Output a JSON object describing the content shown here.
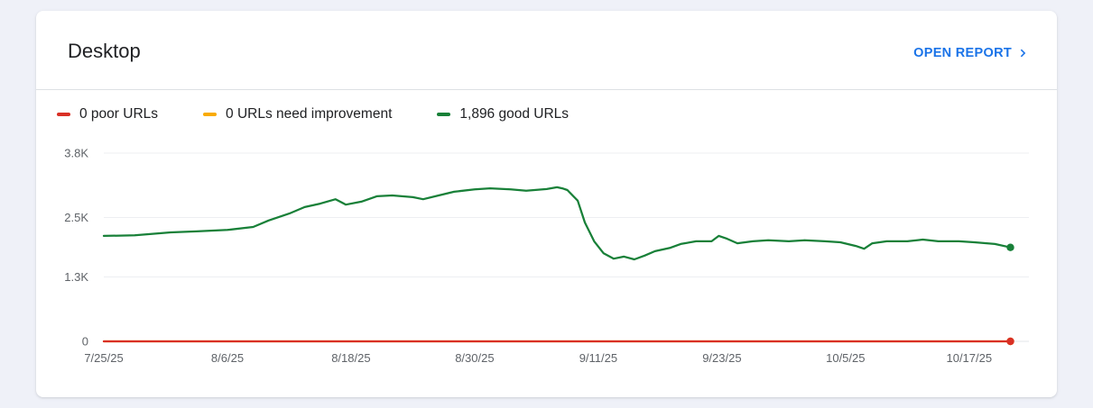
{
  "header": {
    "title": "Desktop",
    "open_report_label": "OPEN REPORT"
  },
  "legend": {
    "items": [
      {
        "label": "0 poor URLs",
        "color": "#d93025"
      },
      {
        "label": "0 URLs need improvement",
        "color": "#f9ab00"
      },
      {
        "label": "1,896 good URLs",
        "color": "#188038"
      }
    ]
  },
  "chart_data": {
    "type": "line",
    "title": "Desktop",
    "xlabel": "",
    "ylabel": "",
    "grid": true,
    "legend_position": "top-left",
    "xlim": [
      0,
      89.8
    ],
    "ylim": [
      0,
      3800
    ],
    "x_unit": "days since 7/25/25",
    "x_ticks": [
      {
        "day": 0,
        "label": "7/25/25"
      },
      {
        "day": 12,
        "label": "8/6/25"
      },
      {
        "day": 24,
        "label": "8/18/25"
      },
      {
        "day": 36,
        "label": "8/30/25"
      },
      {
        "day": 48,
        "label": "9/11/25"
      },
      {
        "day": 60,
        "label": "9/23/25"
      },
      {
        "day": 72,
        "label": "10/5/25"
      },
      {
        "day": 84,
        "label": "10/17/25"
      }
    ],
    "y_ticks": [
      {
        "value": 0,
        "label": "0"
      },
      {
        "value": 1300,
        "label": "1.3K"
      },
      {
        "value": 2500,
        "label": "2.5K"
      },
      {
        "value": 3800,
        "label": "3.8K"
      }
    ],
    "series": [
      {
        "name": "good URLs",
        "color": "#188038",
        "points": [
          [
            0,
            2130
          ],
          [
            3,
            2140
          ],
          [
            6.5,
            2200
          ],
          [
            9,
            2220
          ],
          [
            12,
            2250
          ],
          [
            14.5,
            2310
          ],
          [
            16,
            2440
          ],
          [
            18,
            2580
          ],
          [
            19.5,
            2710
          ],
          [
            21,
            2780
          ],
          [
            22.5,
            2870
          ],
          [
            23.5,
            2760
          ],
          [
            25,
            2820
          ],
          [
            26.5,
            2930
          ],
          [
            28,
            2945
          ],
          [
            30,
            2910
          ],
          [
            31,
            2870
          ],
          [
            32.5,
            2945
          ],
          [
            34,
            3020
          ],
          [
            36,
            3070
          ],
          [
            37.5,
            3090
          ],
          [
            39.5,
            3070
          ],
          [
            41,
            3040
          ],
          [
            43,
            3075
          ],
          [
            44,
            3110
          ],
          [
            44.5,
            3090
          ],
          [
            45,
            3055
          ],
          [
            46,
            2840
          ],
          [
            46.7,
            2400
          ],
          [
            47.6,
            2020
          ],
          [
            48.5,
            1780
          ],
          [
            49.5,
            1670
          ],
          [
            50.5,
            1710
          ],
          [
            51.5,
            1655
          ],
          [
            52.5,
            1730
          ],
          [
            53.5,
            1820
          ],
          [
            55,
            1890
          ],
          [
            56,
            1965
          ],
          [
            57.5,
            2020
          ],
          [
            59,
            2020
          ],
          [
            59.7,
            2130
          ],
          [
            60.5,
            2070
          ],
          [
            61.5,
            1980
          ],
          [
            63,
            2020
          ],
          [
            64.5,
            2040
          ],
          [
            66.5,
            2020
          ],
          [
            68,
            2040
          ],
          [
            70,
            2020
          ],
          [
            71.5,
            2000
          ],
          [
            73,
            1925
          ],
          [
            73.8,
            1870
          ],
          [
            74.6,
            1980
          ],
          [
            76,
            2020
          ],
          [
            78,
            2020
          ],
          [
            79.5,
            2055
          ],
          [
            81,
            2020
          ],
          [
            83,
            2020
          ],
          [
            84.5,
            2000
          ],
          [
            86.5,
            1965
          ],
          [
            88,
            1896
          ]
        ]
      },
      {
        "name": "URLs need improvement",
        "color": "#f9ab00",
        "points": [
          [
            0,
            0
          ],
          [
            88,
            0
          ]
        ]
      },
      {
        "name": "poor URLs",
        "color": "#d93025",
        "points": [
          [
            0,
            0
          ],
          [
            88,
            0
          ]
        ]
      }
    ]
  }
}
